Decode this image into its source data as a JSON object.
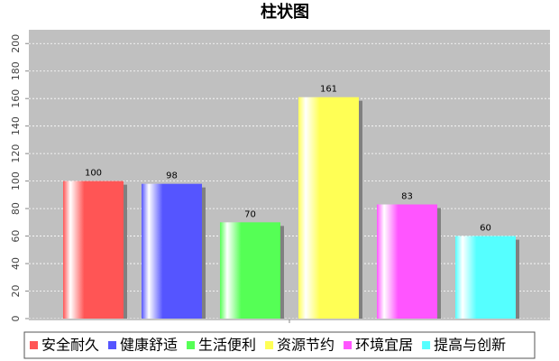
{
  "chart_data": {
    "type": "bar",
    "title": "柱状图",
    "categories": [
      null
    ],
    "series": [
      {
        "name": "安全耐久",
        "color": "#ff5555",
        "values": [
          100
        ]
      },
      {
        "name": "健康舒适",
        "color": "#5555ff",
        "values": [
          98
        ]
      },
      {
        "name": "生活便利",
        "color": "#55ff55",
        "values": [
          70
        ]
      },
      {
        "name": "资源节约",
        "color": "#ffff55",
        "values": [
          161
        ]
      },
      {
        "name": "环境宜居",
        "color": "#ff55ff",
        "values": [
          83
        ]
      },
      {
        "name": "提高与创新",
        "color": "#55ffff",
        "values": [
          60
        ]
      }
    ],
    "ylim": [
      0,
      210
    ],
    "yticks": [
      0,
      20,
      40,
      60,
      80,
      100,
      120,
      140,
      160,
      180,
      200
    ],
    "grid": true,
    "legend": "bottom"
  }
}
